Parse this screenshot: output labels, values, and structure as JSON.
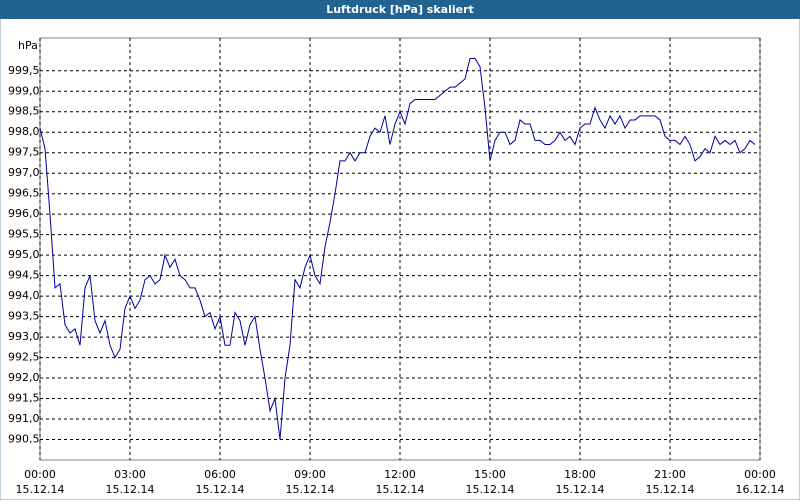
{
  "chart_data": {
    "type": "line",
    "title": "Luftdruck [hPa] skaliert",
    "y_label": "hPa",
    "x": [
      0,
      10,
      20,
      30,
      40,
      50,
      60,
      70,
      80,
      90,
      100,
      110,
      120,
      130,
      140,
      150,
      160,
      170,
      180,
      190,
      200,
      210,
      220,
      230,
      240,
      250,
      260,
      270,
      280,
      290,
      300,
      310,
      320,
      330,
      340,
      350,
      360,
      370,
      380,
      390,
      400,
      410,
      420,
      430,
      440,
      450,
      460,
      470,
      480,
      490,
      500,
      510,
      520,
      530,
      540,
      550,
      560,
      570,
      580,
      590,
      600,
      610,
      620,
      630,
      640,
      650,
      660,
      670,
      680,
      690,
      700,
      710,
      720,
      730,
      740,
      750,
      760,
      770,
      780,
      790,
      800,
      810,
      820,
      830,
      840,
      850,
      860,
      870,
      880,
      890,
      900,
      910,
      920,
      930,
      940,
      950,
      960,
      970,
      980,
      990,
      1000,
      1010,
      1020,
      1030,
      1040,
      1050,
      1060,
      1070,
      1080,
      1090,
      1100,
      1110,
      1120,
      1130,
      1140,
      1150,
      1160,
      1170,
      1180,
      1190,
      1200,
      1210,
      1220,
      1230,
      1240,
      1250,
      1260,
      1270,
      1280,
      1290,
      1300,
      1310,
      1320,
      1330,
      1340,
      1350,
      1360,
      1370,
      1380,
      1390,
      1400,
      1410,
      1420,
      1430
    ],
    "series": [
      {
        "name": "Luftdruck",
        "color": "#0000a0",
        "values": [
          998.1,
          997.6,
          996.0,
          994.2,
          994.3,
          993.3,
          993.1,
          993.2,
          992.8,
          994.2,
          994.5,
          993.4,
          993.1,
          993.4,
          992.8,
          992.5,
          992.7,
          993.7,
          994.0,
          993.7,
          993.9,
          994.4,
          994.5,
          994.3,
          994.4,
          995.0,
          994.7,
          994.9,
          994.5,
          994.4,
          994.2,
          994.2,
          993.9,
          993.5,
          993.6,
          993.2,
          993.5,
          992.8,
          992.8,
          993.6,
          993.4,
          992.8,
          993.3,
          993.5,
          992.7,
          992.0,
          991.2,
          991.5,
          990.5,
          992.0,
          992.8,
          994.4,
          994.2,
          994.7,
          995.0,
          994.5,
          994.3,
          995.2,
          995.8,
          996.5,
          997.3,
          997.3,
          997.5,
          997.3,
          997.5,
          997.5,
          997.9,
          998.1,
          998.0,
          998.4,
          997.7,
          998.2,
          998.5,
          998.2,
          998.7,
          998.8,
          998.8,
          998.8,
          998.8,
          998.8,
          998.9,
          999.0,
          999.1,
          999.1,
          999.2,
          999.3,
          999.8,
          999.8,
          999.6,
          998.6,
          997.3,
          997.8,
          998.0,
          998.0,
          997.7,
          997.8,
          998.3,
          998.2,
          998.2,
          997.8,
          997.8,
          997.7,
          997.7,
          997.8,
          998.0,
          997.8,
          997.9,
          997.7,
          998.1,
          998.2,
          998.2,
          998.6,
          998.3,
          998.1,
          998.4,
          998.2,
          998.4,
          998.1,
          998.3,
          998.3,
          998.4,
          998.4,
          998.4,
          998.4,
          998.3,
          997.9,
          997.8,
          997.8,
          997.7,
          997.9,
          997.7,
          997.3,
          997.4,
          997.6,
          997.5,
          997.9,
          997.7,
          997.8,
          997.7,
          997.8,
          997.5,
          997.6,
          997.8,
          997.7
        ]
      }
    ],
    "xlim": [
      0,
      1440
    ],
    "ylim": [
      990,
      1000.3
    ],
    "xticks": [
      {
        "value": 0,
        "label": "00:00\n15.12.14"
      },
      {
        "value": 180,
        "label": "03:00\n15.12.14"
      },
      {
        "value": 360,
        "label": "06:00\n15.12.14"
      },
      {
        "value": 540,
        "label": "09:00\n15.12.14"
      },
      {
        "value": 720,
        "label": "12:00\n15.12.14"
      },
      {
        "value": 900,
        "label": "15:00\n15.12.14"
      },
      {
        "value": 1080,
        "label": "18:00\n15.12.14"
      },
      {
        "value": 1260,
        "label": "21:00\n15.12.14"
      },
      {
        "value": 1440,
        "label": "00:00\n16.12.14"
      }
    ],
    "yticks": [
      {
        "value": 990.5,
        "label": "990,5"
      },
      {
        "value": 991,
        "label": "991,0"
      },
      {
        "value": 991.5,
        "label": "991,5"
      },
      {
        "value": 992,
        "label": "992,0"
      },
      {
        "value": 992.5,
        "label": "992,5"
      },
      {
        "value": 993,
        "label": "993,0"
      },
      {
        "value": 993.5,
        "label": "993,5"
      },
      {
        "value": 994,
        "label": "994,0"
      },
      {
        "value": 994.5,
        "label": "994,5"
      },
      {
        "value": 995,
        "label": "995,0"
      },
      {
        "value": 995.5,
        "label": "995,5"
      },
      {
        "value": 996,
        "label": "996,0"
      },
      {
        "value": 996.5,
        "label": "996,5"
      },
      {
        "value": 997,
        "label": "997,0"
      },
      {
        "value": 997.5,
        "label": "997,5"
      },
      {
        "value": 998,
        "label": "998,0"
      },
      {
        "value": 998.5,
        "label": "998,5"
      },
      {
        "value": 999,
        "label": "999,0"
      },
      {
        "value": 999.5,
        "label": "999,5"
      }
    ],
    "grid": true
  }
}
